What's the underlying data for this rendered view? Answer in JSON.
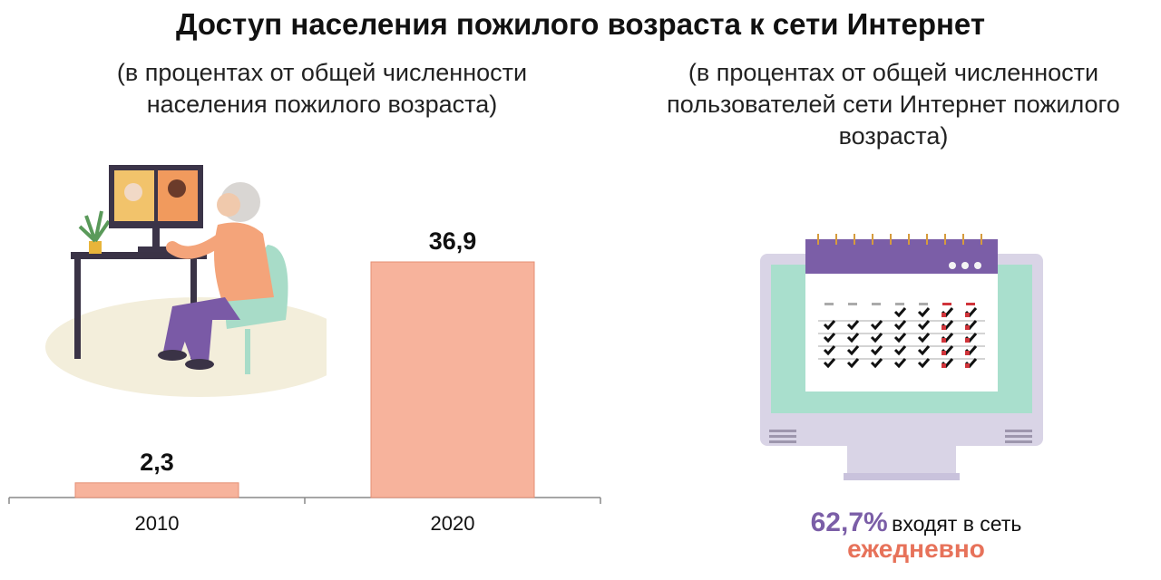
{
  "title": "Доступ населения пожилого возраста к сети Интернет",
  "subtitle_left": "(в процентах от общей численности населения пожилого возраста)",
  "subtitle_right": "(в процентах от общей численности пользователей сети Интернет пожилого возраста)",
  "chart_data": {
    "type": "bar",
    "categories": [
      "2010",
      "2020"
    ],
    "values": [
      2.3,
      36.9
    ],
    "data_labels": [
      "2,3",
      "36,9"
    ],
    "bar_color": "#f7b39c",
    "ylim": [
      0,
      45
    ],
    "grid": false
  },
  "stat": {
    "percent": "62,7%",
    "text": "входят в сеть",
    "emphasis": "ежедневно",
    "percent_color": "#7b5ea7",
    "emphasis_color": "#e7725a"
  },
  "icons": [
    "elderly-woman-at-computer-illustration",
    "calendar-monitor-illustration"
  ]
}
